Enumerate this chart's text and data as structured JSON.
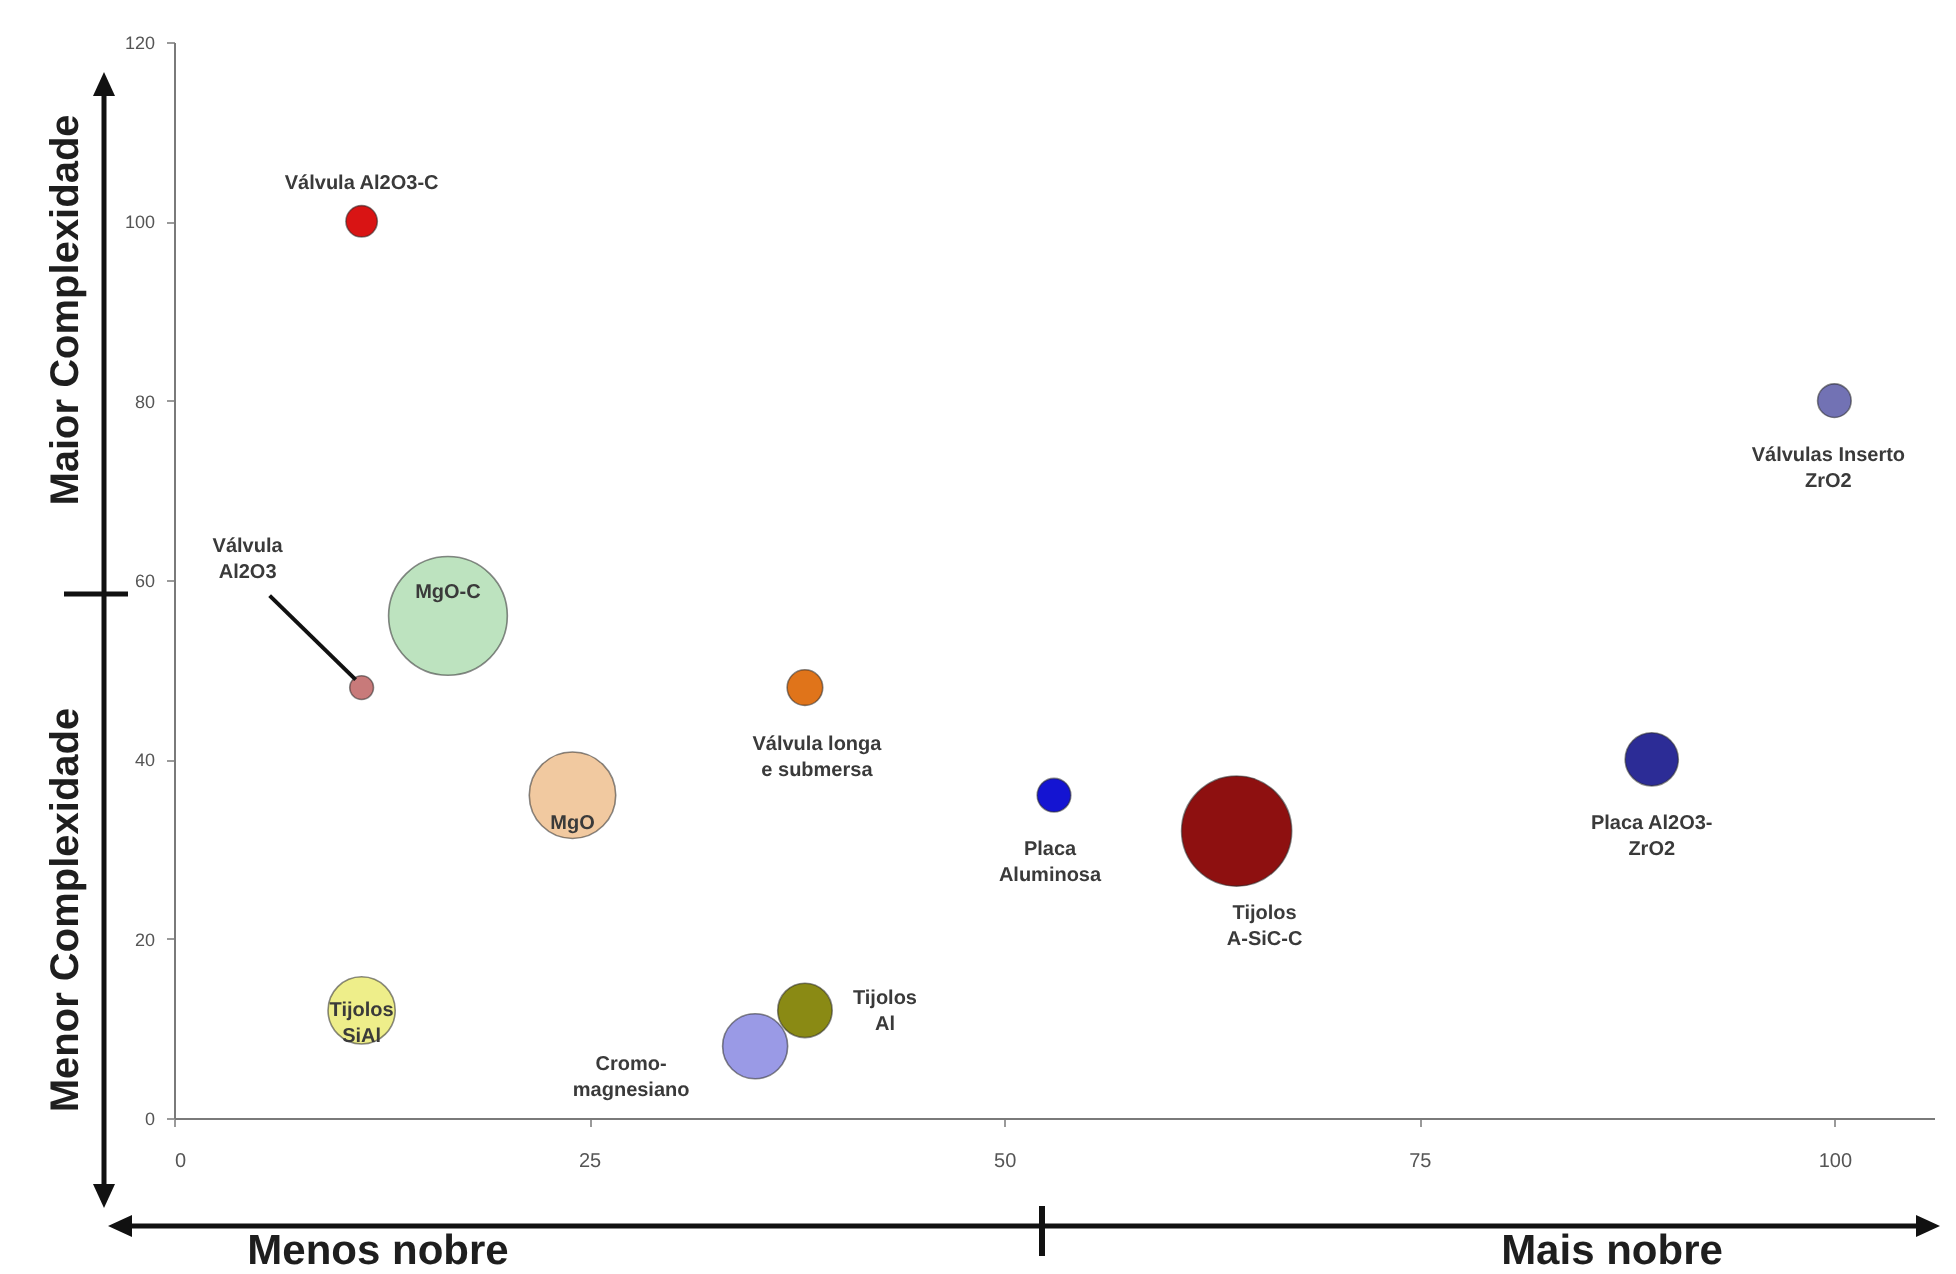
{
  "chart_data": {
    "type": "bubble",
    "xlim": [
      0,
      106
    ],
    "xticks": [
      0,
      25,
      50,
      75,
      100
    ],
    "ylim": [
      0,
      120
    ],
    "yticks": [
      0,
      20,
      40,
      60,
      80,
      100,
      120
    ],
    "annotations": [
      "Maior Complexidade",
      "Menor Complexidade",
      "Menos nobre",
      "Mais nobre"
    ],
    "series": [
      {
        "name": "Válvula Al2O3-C",
        "color": "#d91414",
        "x": [
          11.3
        ],
        "values": [
          100
        ],
        "sizes": [
          0.07
        ]
      },
      {
        "name": "Válvula Al2O3",
        "color": "#c87a7a",
        "x": [
          11.3
        ],
        "values": [
          48
        ],
        "sizes": [
          0.04
        ]
      },
      {
        "name": "MgO-C",
        "color": "#bde3bf",
        "x": [
          16.5
        ],
        "values": [
          56
        ],
        "sizes": [
          1
        ]
      },
      {
        "name": "MgO",
        "color": "#f1c9a0",
        "x": [
          24
        ],
        "values": [
          36
        ],
        "sizes": [
          0.53
        ]
      },
      {
        "name": "Tijolos SiAl",
        "color": "#eeee8a",
        "x": [
          11.3
        ],
        "values": [
          12
        ],
        "sizes": [
          0.32
        ]
      },
      {
        "name": "Cromo-magnesiano",
        "color": "#9a9ae6",
        "x": [
          35
        ],
        "values": [
          8
        ],
        "sizes": [
          0.3
        ]
      },
      {
        "name": "Tijolos Al",
        "color": "#8a8a14",
        "x": [
          38
        ],
        "values": [
          12
        ],
        "sizes": [
          0.21
        ]
      },
      {
        "name": "Válvula longa e submersa",
        "color": "#e0741a",
        "x": [
          38
        ],
        "values": [
          48
        ],
        "sizes": [
          0.09
        ]
      },
      {
        "name": "Placa Aluminosa",
        "color": "#1414d2",
        "x": [
          53
        ],
        "values": [
          36
        ],
        "sizes": [
          0.08
        ]
      },
      {
        "name": "Tijolos A-SiC-C",
        "color": "#8e1010",
        "x": [
          64
        ],
        "values": [
          32
        ],
        "sizes": [
          0.86
        ]
      },
      {
        "name": "Placa Al2O3-ZrO2",
        "color": "#2c2c96",
        "x": [
          89
        ],
        "values": [
          40
        ],
        "sizes": [
          0.2
        ]
      },
      {
        "name": "Válvulas Inserto ZrO2",
        "color": "#7272b4",
        "x": [
          100
        ],
        "values": [
          80
        ],
        "sizes": [
          0.08
        ]
      }
    ]
  }
}
